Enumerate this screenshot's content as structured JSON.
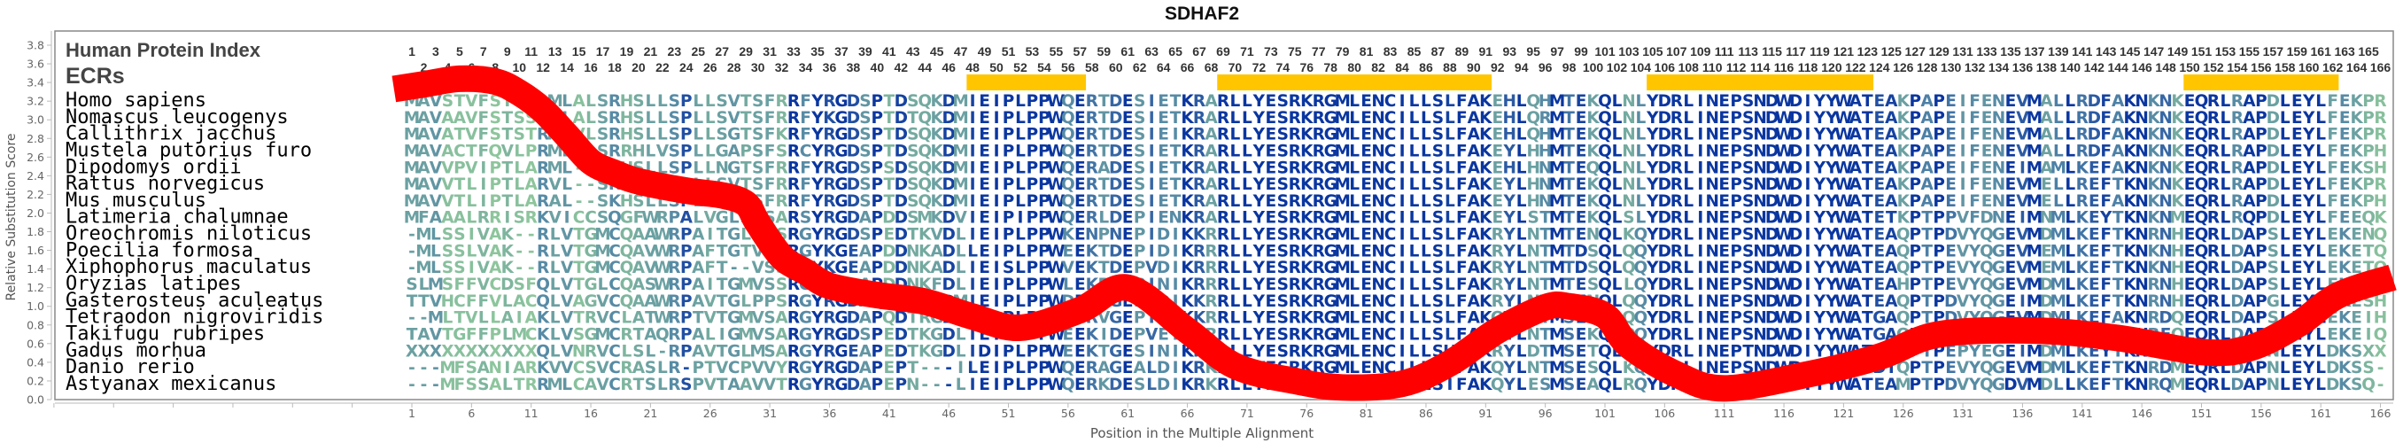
{
  "title": "SDHAF2",
  "labels": {
    "index_label": "Human Protein Index",
    "ecr_label": "ECRs"
  },
  "species": [
    "Homo sapiens",
    "Nomascus leucogenys",
    "Callithrix jacchus",
    "Mustela putorius furo",
    "Dipodomys ordii",
    "Rattus norvegicus",
    "Mus musculus",
    "Latimeria chalumnae",
    "Oreochromis niloticus",
    "Poecilia formosa",
    "Xiphophorus maculatus",
    "Oryzias latipes",
    "Gasterosteus aculeatus",
    "Tetraodon nigroviridis",
    "Takifugu rubripes",
    "Gadus morhua",
    "Danio rerio",
    "Astyanax mexicanus"
  ],
  "sequences": [
    "MAVSTVFSTSSLMLALSRHSLLSPLLSVTSFRRFYRGDSPTDSQKDMIEIPLPPWQERTDESIETKRARLLYESRKRGMLENCILLSLFAKEHLQHMTEKQLNLYDRLINEPSNDWDIYYWATEAKPAPEIFENEVMALLRDFAKNKNKEQRLRAPDLEYLFEKPR",
    "MAVAAVFSTSSRMLALSRHSLLSPLLSVTSFRRFYKGDSPTDTQKDMIEIPLPPWQERTDESIETKRARLLYESRKRGMLENCILLSLFAKEHLQRMTEKQLNLYDRLINEPSNDWDIYYWATEAKPAPEIFENEVMALLRDFAKNKNKEQRLRAPDLEYLFEKPR",
    "MAVATVFSTSTRMLVLSRHSLLSPLLSGTSFKRFYRGDSPTDSQKDMIEIPLPPWQERTDESIEIKRARLLYESRKRGMLENCILLSLFAKEHLQHMTEKQLNLYDRLINEPSNDWDIYYWATEAKPAPEIFENEVMALLRDFAKNKNKEQRLRAPDLEYLFEKPR",
    "MAVACTFQVLPRMLALSRRHLVSPLLGAPSFSRCYRGDSPTDSQKDMIEIPLPPWQERTDESIETKRARLLYESRKRGMLENCILLSLFAKEYLHHMTEKQLNLYDRLINEPSNDWDIYYWATEAKPAPEIFENEVMALLRDFAKNKNKEQRLRAPDLEYLFEKPH",
    "MAVVPVIPTLARML--SRHSLLSPLLNGTSFRRFYRGDSPSDSQKDMIEIPLPPWQERADESIETKRARLLYESRKRGMLENCILLSLFAKEHLHNMTEQQLNLYDRLINEPSNDWDIYYWATEAKPAPEIFENEIMAMLKEFAKNKNKEQRLRAPDLEYLFEKSH",
    "MAVVTLIPTLARVL--SKHSLLSPLLSVTSFRRFYRGDSPTDSQKDMIEIPLPPWQERTDESIETKRARLLYESRKRGMLENCILLSLFAKEYLHNMTEKQLNLYDRLINEPSNDWDIYYWATEAKPAPEIFENEVMELLREFTKNKNKEQRLRAPDLEYLFEKPR",
    "MAVVTLIPTLARAL--SKHSLLSPLPSVTSFRRFYRGDSPTDSQKDMIEIPLPPWQERTDESIETKRARLLYESRKRGMLENCILLSLFAKEYLHNMTEKQLNLYDRLINEPSNDWDIYYWATEAKPAPEIFENEVMELLREFAKNKNKEQRLRAPDLEYLFEKPH",
    "MFAAALRRISRKVICCSQGFWRPALVGLSPSARSYRGDAPDDSMKDVIEIPIPPWQERLDEPIENKRARLLYESRKRGMLENCILLSLFAKEYLSTMTEKQLSLYDRLINEPSNDWDIYYWATETKPTPPVFDNEIMNMLKEYTKNKNMEQRLRQPDLEYLFEEQK",
    "-MLSSIVAK--RLVTGMCQAAWRPAITGLVSSRGYRGDSPEDTKVDLIEIPLPPWKENPNEPIDIKKRRLLYESRKRGMLENCILLSLFAKRYLNTMTENQLKQYDRLINEPSNDWDIYYWATEAQPTPDVYQGEVMDMLKEFTKNRNHEQRLDAPSLEYLEKENQ",
    "-MLSSLVAK--RLVTGMCQAVWRPAFTGTVSSRGYKGEAPDDNKADLLEIPLPPWEEKTDEPIDIKRRRLLYESRKRGMLENCILLSLFAKRYLNTMTDSQLQQYDRLINEPSNDWDIYYWATEAQPTPEVYQGEVMEMLKEFTKNKNHEQRLDAPSLEYLEKETQ",
    "-MLSSIVAK--RLVTGMCQAVWRPAFT--VSSRGYKGEAPDDNKADLIEISLPPWVEKTDEPVDIKRRRLLYESRKRGMLENCILLSLFAKRYLNTMTDSQLQQYDRLINEPSNDWDIYYWATEAQPTPEVYQGEVMEMLKEFTKNKNHEQRLDAPSLEYLEKETQ",
    "SLMSFFVCDSFQLVTGLCQASWRPAITGMVSSRGYRGDAPDDNKFDLIEIPLPPWLEKPDEPINIKRRRLLYESRKRGMLENCILLSLFAKRYLNTMTESQLLQYDRLINEPSNDWDIYYWATEAHPTPEVYQGEVMDMLKEFTKNRNHEQRLDAPSLEYLEKESQ",
    "TTVHCFFVLACQLVAGVCQAAWRPAVTGLPPSRGYRGDAQDDTRGDMIEIPLPPWDERPGEPTDIKKRRLLYESRKRGMLENCILLSLFAKRYLNTMNENQLQQYDRLINEPSNDWDIYYWATEAQPTPDVYQGEIMDMLKEFTKNRNHEQRLDAPGLEYLEKESH",
    "--MLTVLLAIAKLVTRVCLATWRPTVTGMVSARGYRGDAPQDTRGDLIEIPLPPWEERVGEPIEVKKRRLLYESRKRGMLENCILLSLFAKQYLNTMSENQLQQYDRLINEPSNDWDIYYWATGAQPTPDVYQGEVMDMLKEFAKNRDQEQRLDAPSLEYLEKEIH",
    "TAVTGFFPLMCKLVSGMCRTAQRPALIGMVSARGYRGDSPEDTKGDLIEIPLPPWEEKIDEPVEIKKRRLLYESRKRGMLENCILLSLFAKRYLNTMSEKQLQQYDRLINEPSNDWDIYYWATGAQPTPDIYQGEVMDMLKEFTKNREQEQRLDAPSLEYLEKEIQ",
    "XXXXXXXXXXXQLVNRVCLSL-RPAVTGLMSARGYRGEAPEDTKGDLIDIPLPPWEEKTGESINIKRRRLLYESRKRGMLENCILLSHFAKRYLDTMSETQLRQYDRLINEPTNDWDIYYWATEALPTPEPYEGEIMDMLKEYTKNRDQEQRLDAPNLEYLDKSXX",
    "---MFSANIARKVVCSVCRASLR-PTVCPVVYRGYRGDAPEPT---ILEIPLPPWQERAGEALDIKRKRLLYESRKRGMLENCILLSLFAKQYLNTMSESQLKQYDRLINEPSNDWDIYYWATDTQPTPEVYQGEVMDMLKEFTKNRDMEQRLDAPNLEYLDKSS-",
    "---MFSSALTRRMLCAVCRTSLRSPVTAAVVTRGYRGDAPEPN---LIEIPLPPWQERKDESLDIKRKRLLYESRKRGMLENCILLSIFAKQYLESMSEAQLRQYDRLINEPSNDWDIYYWATEAMPTPDVYQGDVMDLLKEFTKNRQMEQRLDAPNLEYLDKSQ-"
  ],
  "chart_data": {
    "type": "line",
    "title": "SDHAF2",
    "xlabel": "Position in the Multiple Alignment",
    "ylabel": "Relative Substitution Score",
    "ylim": [
      0,
      3.8
    ],
    "yticks": [
      0.0,
      0.2,
      0.4,
      0.6,
      0.8,
      1.0,
      1.2,
      1.4,
      1.6,
      1.8,
      2.0,
      2.2,
      2.4,
      2.6,
      2.8,
      3.0,
      3.2,
      3.4,
      3.6,
      3.8
    ],
    "xlim": [
      -29,
      168
    ],
    "xticks_unlabeled": [
      -29,
      -24,
      -19,
      -14,
      -9,
      -4
    ],
    "xticks": [
      1,
      6,
      11,
      16,
      21,
      26,
      31,
      36,
      41,
      46,
      51,
      56,
      61,
      66,
      71,
      76,
      81,
      86,
      91,
      96,
      101,
      106,
      111,
      116,
      121,
      126,
      131,
      136,
      141,
      146,
      151,
      156,
      161,
      166
    ],
    "grid": false,
    "series": [
      {
        "name": "Relative Substitution Score",
        "color": "#ff0000",
        "x": [
          -0.5,
          2,
          5,
          8,
          10,
          12,
          14,
          16,
          18,
          20,
          24,
          27,
          29,
          30,
          32,
          34,
          36,
          40,
          44,
          48,
          52,
          57,
          61,
          66,
          70,
          75,
          79,
          84,
          88,
          92,
          96,
          98,
          101,
          103,
          107,
          111,
          118,
          124,
          129,
          137,
          144,
          151,
          155,
          159,
          162.5,
          167
        ],
        "y": [
          3.33,
          3.38,
          3.44,
          3.41,
          3.29,
          3.1,
          2.83,
          2.55,
          2.43,
          2.34,
          2.24,
          2.19,
          2.1,
          1.89,
          1.53,
          1.37,
          1.22,
          1.12,
          1.05,
          0.89,
          0.77,
          0.96,
          1.2,
          0.74,
          0.36,
          0.2,
          0.13,
          0.17,
          0.39,
          0.74,
          0.99,
          1.0,
          0.9,
          0.58,
          0.27,
          0.12,
          0.27,
          0.46,
          0.7,
          0.74,
          0.66,
          0.51,
          0.55,
          0.8,
          1.12,
          1.31
        ]
      }
    ],
    "ecrs": [
      [
        48,
        57
      ],
      [
        69,
        91
      ],
      [
        105,
        123
      ],
      [
        150,
        162
      ]
    ],
    "ecr_color": "#ffc600",
    "residue_colors": {
      "high": "#0a36a0",
      "mid": "#4f82a6",
      "low": "#8dc59c"
    }
  }
}
